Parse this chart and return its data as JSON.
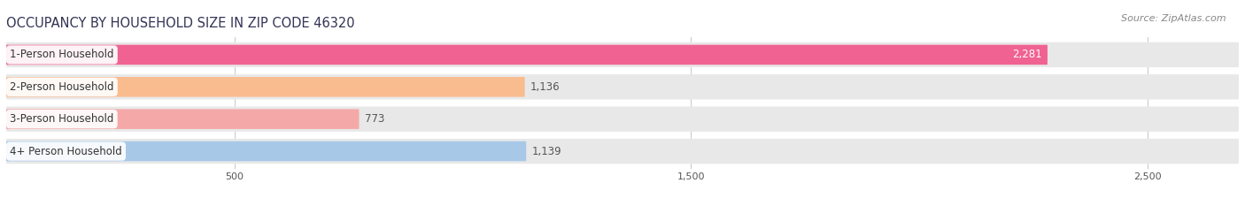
{
  "title": "OCCUPANCY BY HOUSEHOLD SIZE IN ZIP CODE 46320",
  "source": "Source: ZipAtlas.com",
  "categories": [
    "1-Person Household",
    "2-Person Household",
    "3-Person Household",
    "4+ Person Household"
  ],
  "values": [
    2281,
    1136,
    773,
    1139
  ],
  "bar_colors": [
    "#f06292",
    "#f9bc8f",
    "#f4a9a8",
    "#a8c8e8"
  ],
  "bar_bg_color": "#e8e8e8",
  "xlim": [
    0,
    2700
  ],
  "xticks": [
    500,
    1500,
    2500
  ],
  "title_fontsize": 10.5,
  "source_fontsize": 8,
  "bar_label_fontsize": 8.5,
  "cat_label_fontsize": 8.5,
  "background_color": "#ffffff"
}
